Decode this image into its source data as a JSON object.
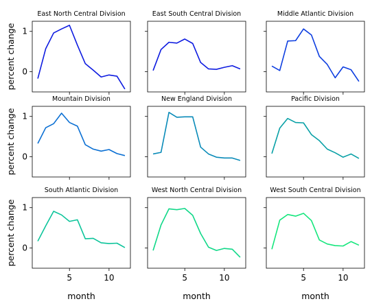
{
  "chart_data": {
    "type": "line",
    "layout": "3x3 small multiples, shared axes",
    "xlabel": "month",
    "ylabel": "percent change",
    "xlim": [
      0.3,
      12.7
    ],
    "ylim": [
      -0.5,
      1.25
    ],
    "xticks": [
      5,
      10
    ],
    "yticks": [
      0,
      1
    ],
    "grid": false,
    "legend": "none",
    "x": [
      1,
      2,
      3,
      4,
      5,
      6,
      7,
      8,
      9,
      10,
      11,
      12
    ],
    "series": [
      {
        "name": "East North Central Division",
        "color": "#0d1be0",
        "values": [
          -0.17,
          0.57,
          0.96,
          1.06,
          1.15,
          0.66,
          0.2,
          0.04,
          -0.13,
          -0.08,
          -0.11,
          -0.43
        ]
      },
      {
        "name": "East South Central Division",
        "color": "#0d1be0",
        "values": [
          0.03,
          0.55,
          0.73,
          0.71,
          0.81,
          0.7,
          0.23,
          0.07,
          0.06,
          0.11,
          0.15,
          0.07
        ]
      },
      {
        "name": "Middle Atlantic Division",
        "color": "#0d3ee0",
        "values": [
          0.14,
          0.03,
          0.76,
          0.77,
          1.06,
          0.91,
          0.38,
          0.18,
          -0.15,
          0.12,
          0.05,
          -0.24
        ]
      },
      {
        "name": "Mountain Division",
        "color": "#0a6fd3",
        "values": [
          0.33,
          0.72,
          0.82,
          1.08,
          0.85,
          0.76,
          0.3,
          0.19,
          0.14,
          0.18,
          0.08,
          0.03
        ]
      },
      {
        "name": "New England Division",
        "color": "#088ab8",
        "values": [
          0.07,
          0.11,
          1.1,
          0.98,
          0.99,
          0.99,
          0.24,
          0.07,
          -0.01,
          -0.03,
          -0.03,
          -0.09
        ]
      },
      {
        "name": "Pacific Division",
        "color": "#08a0a6",
        "values": [
          0.08,
          0.71,
          0.95,
          0.85,
          0.84,
          0.55,
          0.4,
          0.19,
          0.1,
          -0.01,
          0.07,
          -0.04
        ]
      },
      {
        "name": "South Atlantic Division",
        "color": "#0bc49a",
        "values": [
          0.17,
          0.55,
          0.91,
          0.82,
          0.66,
          0.7,
          0.23,
          0.24,
          0.13,
          0.11,
          0.12,
          0.01
        ]
      },
      {
        "name": "West North Central Division",
        "color": "#10d888",
        "values": [
          -0.06,
          0.57,
          0.97,
          0.95,
          0.98,
          0.81,
          0.36,
          0.02,
          -0.06,
          -0.01,
          -0.03,
          -0.23
        ]
      },
      {
        "name": "West South Central Division",
        "color": "#14e67c",
        "values": [
          -0.03,
          0.69,
          0.83,
          0.79,
          0.86,
          0.68,
          0.2,
          0.1,
          0.06,
          0.05,
          0.16,
          0.07
        ]
      }
    ]
  }
}
